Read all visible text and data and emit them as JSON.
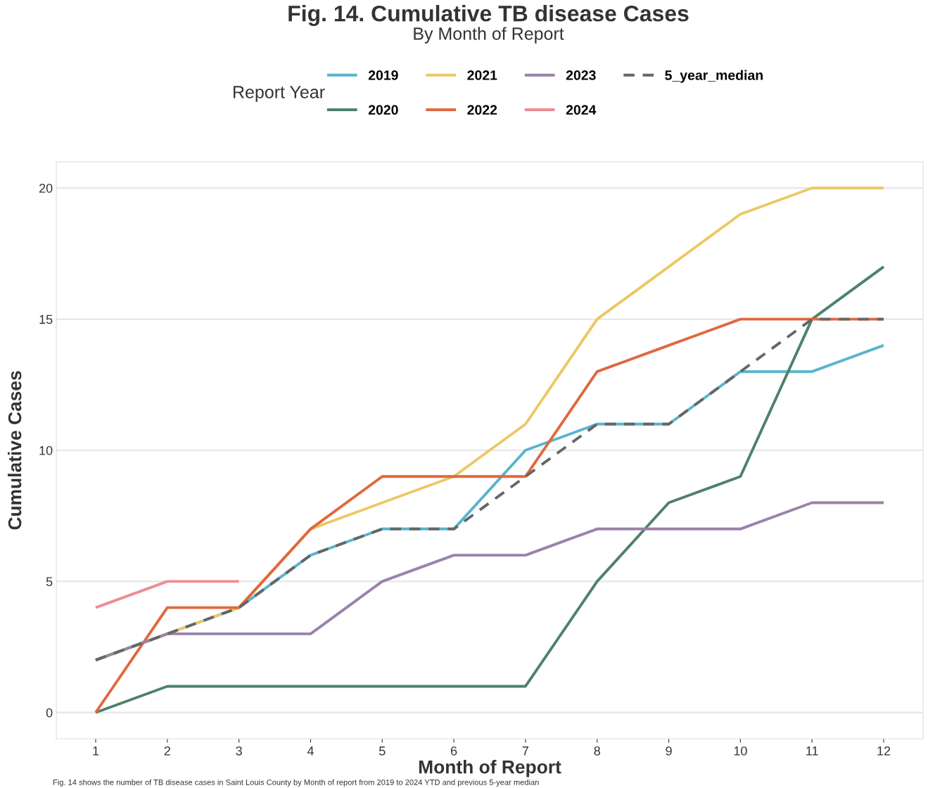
{
  "chart_data": {
    "type": "line",
    "title": "Fig. 14. Cumulative TB disease Cases",
    "subtitle": "By Month of Report",
    "xlabel": "Month of Report",
    "ylabel": "Cumulative Cases",
    "legend_title": "Report Year",
    "x": [
      1,
      2,
      3,
      4,
      5,
      6,
      7,
      8,
      9,
      10,
      11,
      12
    ],
    "series": [
      {
        "name": "2019",
        "color": "#5ab4cd",
        "values": [
          2,
          3,
          4,
          6,
          7,
          7,
          10,
          11,
          11,
          13,
          13,
          14
        ]
      },
      {
        "name": "2020",
        "color": "#4e826a",
        "values": [
          0,
          1,
          1,
          1,
          1,
          1,
          1,
          5,
          8,
          9,
          15,
          17
        ]
      },
      {
        "name": "2021",
        "color": "#ecc864",
        "values": [
          2,
          3,
          4,
          7,
          8,
          9,
          11,
          15,
          17,
          19,
          20,
          20
        ]
      },
      {
        "name": "2022",
        "color": "#e0683f",
        "values": [
          0,
          4,
          4,
          7,
          9,
          9,
          9,
          13,
          14,
          15,
          15,
          15
        ]
      },
      {
        "name": "2023",
        "color": "#9b82aa",
        "values": [
          2,
          3,
          3,
          3,
          5,
          6,
          6,
          7,
          7,
          7,
          8,
          8
        ]
      },
      {
        "name": "2024",
        "color": "#ee8d92",
        "values": [
          4,
          5,
          5,
          null,
          null,
          null,
          null,
          null,
          null,
          null,
          null,
          null
        ]
      },
      {
        "name": "5_year_median",
        "color": "#666666",
        "line_style": "dashed",
        "values": [
          2,
          3,
          4,
          6,
          7,
          7,
          9,
          11,
          11,
          13,
          15,
          15
        ]
      }
    ],
    "xlim": [
      0.45,
      12.55
    ],
    "xticks": [
      1,
      2,
      3,
      4,
      5,
      6,
      7,
      8,
      9,
      10,
      11,
      12
    ],
    "ylim": [
      -1,
      21
    ],
    "yticks": [
      0,
      5,
      10,
      15,
      20
    ],
    "grid": "y",
    "legend": "top",
    "marker": "none",
    "line_style": "solid",
    "annotations": [
      "Fig. 14 shows the number of TB disease cases in Saint Louis County by Month of report from 2019 to 2024 YTD and previous 5-year median"
    ]
  }
}
